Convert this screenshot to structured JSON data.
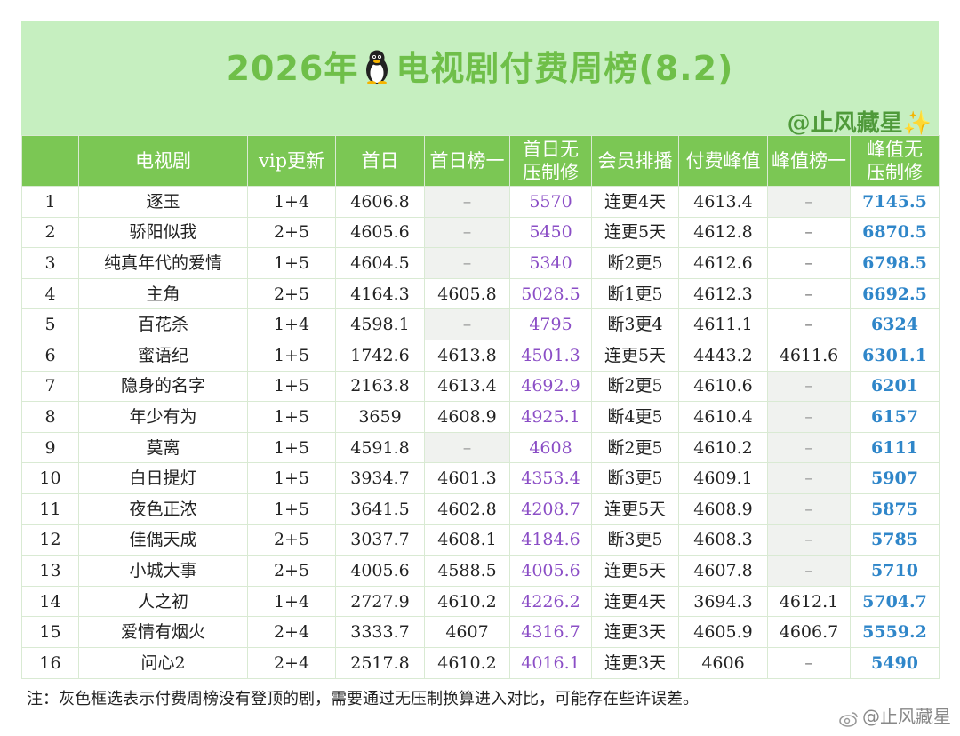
{
  "header": {
    "title_prefix": "2026年",
    "title_suffix": "电视剧付费周榜(8.2)",
    "author": "@止风藏星",
    "author_decoration": "✨"
  },
  "table": {
    "columns": [
      "",
      "电视剧",
      "vip更新",
      "首日",
      "首日榜一",
      "首日无\n压制修",
      "会员排播",
      "付费峰值",
      "峰值榜一",
      "峰值无\n压制修"
    ],
    "rows": [
      {
        "rank": "1",
        "name": "逐玉",
        "vip": "1+4",
        "first_day": "4606.8",
        "first_day_top": "–",
        "first_day_uncapped": "5570",
        "schedule": "连更4天",
        "peak": "4613.4",
        "peak_top": "–",
        "peak_uncapped": "7145.5"
      },
      {
        "rank": "2",
        "name": "骄阳似我",
        "vip": "2+5",
        "first_day": "4605.6",
        "first_day_top": "–",
        "first_day_uncapped": "5450",
        "schedule": "连更5天",
        "peak": "4612.8",
        "peak_top": "–",
        "peak_uncapped": "6870.5"
      },
      {
        "rank": "3",
        "name": "纯真年代的爱情",
        "vip": "1+5",
        "first_day": "4604.5",
        "first_day_top": "–",
        "first_day_uncapped": "5340",
        "schedule": "断2更5",
        "peak": "4612.6",
        "peak_top": "–",
        "peak_uncapped": "6798.5"
      },
      {
        "rank": "4",
        "name": "主角",
        "vip": "2+5",
        "first_day": "4164.3",
        "first_day_top": "4605.8",
        "first_day_uncapped": "5028.5",
        "schedule": "断1更5",
        "peak": "4612.3",
        "peak_top": "–",
        "peak_uncapped": "6692.5"
      },
      {
        "rank": "5",
        "name": "百花杀",
        "vip": "1+4",
        "first_day": "4598.1",
        "first_day_top": "–",
        "first_day_uncapped": "4795",
        "schedule": "断3更4",
        "peak": "4611.1",
        "peak_top": "–",
        "peak_uncapped": "6324"
      },
      {
        "rank": "6",
        "name": "蜜语纪",
        "vip": "1+5",
        "first_day": "1742.6",
        "first_day_top": "4613.8",
        "first_day_uncapped": "4501.3",
        "schedule": "连更5天",
        "peak": "4443.2",
        "peak_top": "4611.6",
        "peak_uncapped": "6301.1"
      },
      {
        "rank": "7",
        "name": "隐身的名字",
        "vip": "1+5",
        "first_day": "2163.8",
        "first_day_top": "4613.4",
        "first_day_uncapped": "4692.9",
        "schedule": "断2更5",
        "peak": "4610.6",
        "peak_top": "–",
        "peak_uncapped": "6201"
      },
      {
        "rank": "8",
        "name": "年少有为",
        "vip": "1+5",
        "first_day": "3659",
        "first_day_top": "4608.9",
        "first_day_uncapped": "4925.1",
        "schedule": "断4更5",
        "peak": "4610.4",
        "peak_top": "–",
        "peak_uncapped": "6157"
      },
      {
        "rank": "9",
        "name": "莫离",
        "vip": "1+5",
        "first_day": "4591.8",
        "first_day_top": "–",
        "first_day_uncapped": "4608",
        "schedule": "断2更5",
        "peak": "4610.2",
        "peak_top": "–",
        "peak_uncapped": "6111"
      },
      {
        "rank": "10",
        "name": "白日提灯",
        "vip": "1+5",
        "first_day": "3934.7",
        "first_day_top": "4601.3",
        "first_day_uncapped": "4353.4",
        "schedule": "断3更5",
        "peak": "4609.1",
        "peak_top": "–",
        "peak_uncapped": "5907"
      },
      {
        "rank": "11",
        "name": "夜色正浓",
        "vip": "1+5",
        "first_day": "3641.5",
        "first_day_top": "4602.8",
        "first_day_uncapped": "4208.7",
        "schedule": "连更5天",
        "peak": "4608.9",
        "peak_top": "–",
        "peak_uncapped": "5875"
      },
      {
        "rank": "12",
        "name": "佳偶天成",
        "vip": "2+5",
        "first_day": "3037.7",
        "first_day_top": "4608.1",
        "first_day_uncapped": "4184.6",
        "schedule": "断3更5",
        "peak": "4608.3",
        "peak_top": "–",
        "peak_uncapped": "5785"
      },
      {
        "rank": "13",
        "name": "小城大事",
        "vip": "2+5",
        "first_day": "4005.6",
        "first_day_top": "4588.5",
        "first_day_uncapped": "4005.6",
        "schedule": "连更5天",
        "peak": "4607.8",
        "peak_top": "–",
        "peak_uncapped": "5710"
      },
      {
        "rank": "14",
        "name": "人之初",
        "vip": "1+4",
        "first_day": "2727.9",
        "first_day_top": "4610.2",
        "first_day_uncapped": "4226.2",
        "schedule": "连更4天",
        "peak": "3694.3",
        "peak_top": "4612.1",
        "peak_uncapped": "5704.7"
      },
      {
        "rank": "15",
        "name": "爱情有烟火",
        "vip": "2+4",
        "first_day": "3333.7",
        "first_day_top": "4607",
        "first_day_uncapped": "4316.7",
        "schedule": "连更3天",
        "peak": "4605.9",
        "peak_top": "4606.7",
        "peak_uncapped": "5559.2"
      },
      {
        "rank": "16",
        "name": "问心2",
        "vip": "2+4",
        "first_day": "2517.8",
        "first_day_top": "4610.2",
        "first_day_uncapped": "4016.1",
        "schedule": "连更3天",
        "peak": "4606",
        "peak_top": "–",
        "peak_uncapped": "5490"
      }
    ],
    "gray_first_day_top_rows": [
      1,
      2,
      3,
      5,
      9
    ],
    "gray_peak_top_rows": [
      1,
      7,
      8,
      9,
      10,
      11,
      12,
      13
    ]
  },
  "footer": {
    "note": "注：灰色框选表示付费周榜没有登顶的剧，需要通过无压制换算进入对比，可能存在些许误差。",
    "watermark": "@止风藏星"
  },
  "colors": {
    "header_bg": "#c6efc0",
    "title": "#6fbf49",
    "column_header_bg": "#7bc754",
    "purple_values": "#8b4ec6",
    "blue_values": "#2f86c9"
  },
  "icons": {
    "title_icon": "penguin-icon",
    "watermark_icon": "weibo-icon"
  }
}
